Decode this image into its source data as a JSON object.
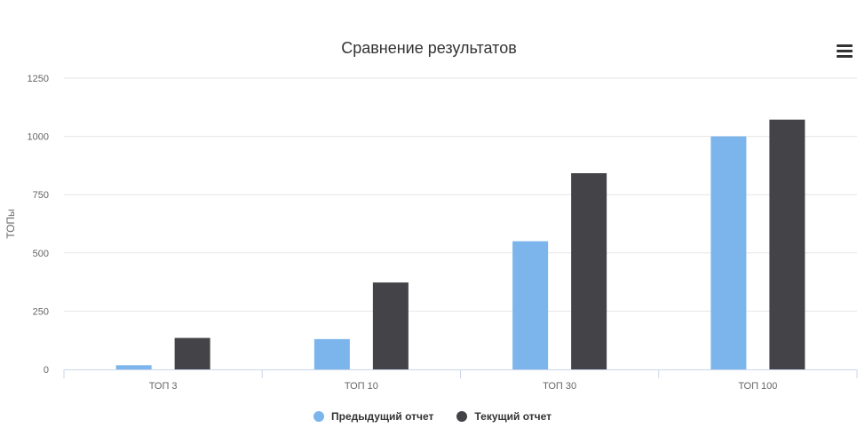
{
  "menu": {
    "icon": "hamburger-menu-icon"
  },
  "chart_data": {
    "type": "bar",
    "title": "Сравнение результатов",
    "xlabel": "",
    "ylabel": "ТОПы",
    "categories": [
      "ТОП 3",
      "ТОП 10",
      "ТОП 30",
      "ТОП 100"
    ],
    "ylim": [
      0,
      1250
    ],
    "yticks": [
      0,
      250,
      500,
      750,
      1000,
      1250
    ],
    "grid": true,
    "legend_position": "bottom-center",
    "series": [
      {
        "name": "Предыдущий отчет",
        "color": "#7cb5ec",
        "values": [
          18,
          130,
          550,
          1000
        ]
      },
      {
        "name": "Текущий отчет",
        "color": "#434348",
        "values": [
          135,
          373,
          842,
          1072
        ]
      }
    ]
  }
}
